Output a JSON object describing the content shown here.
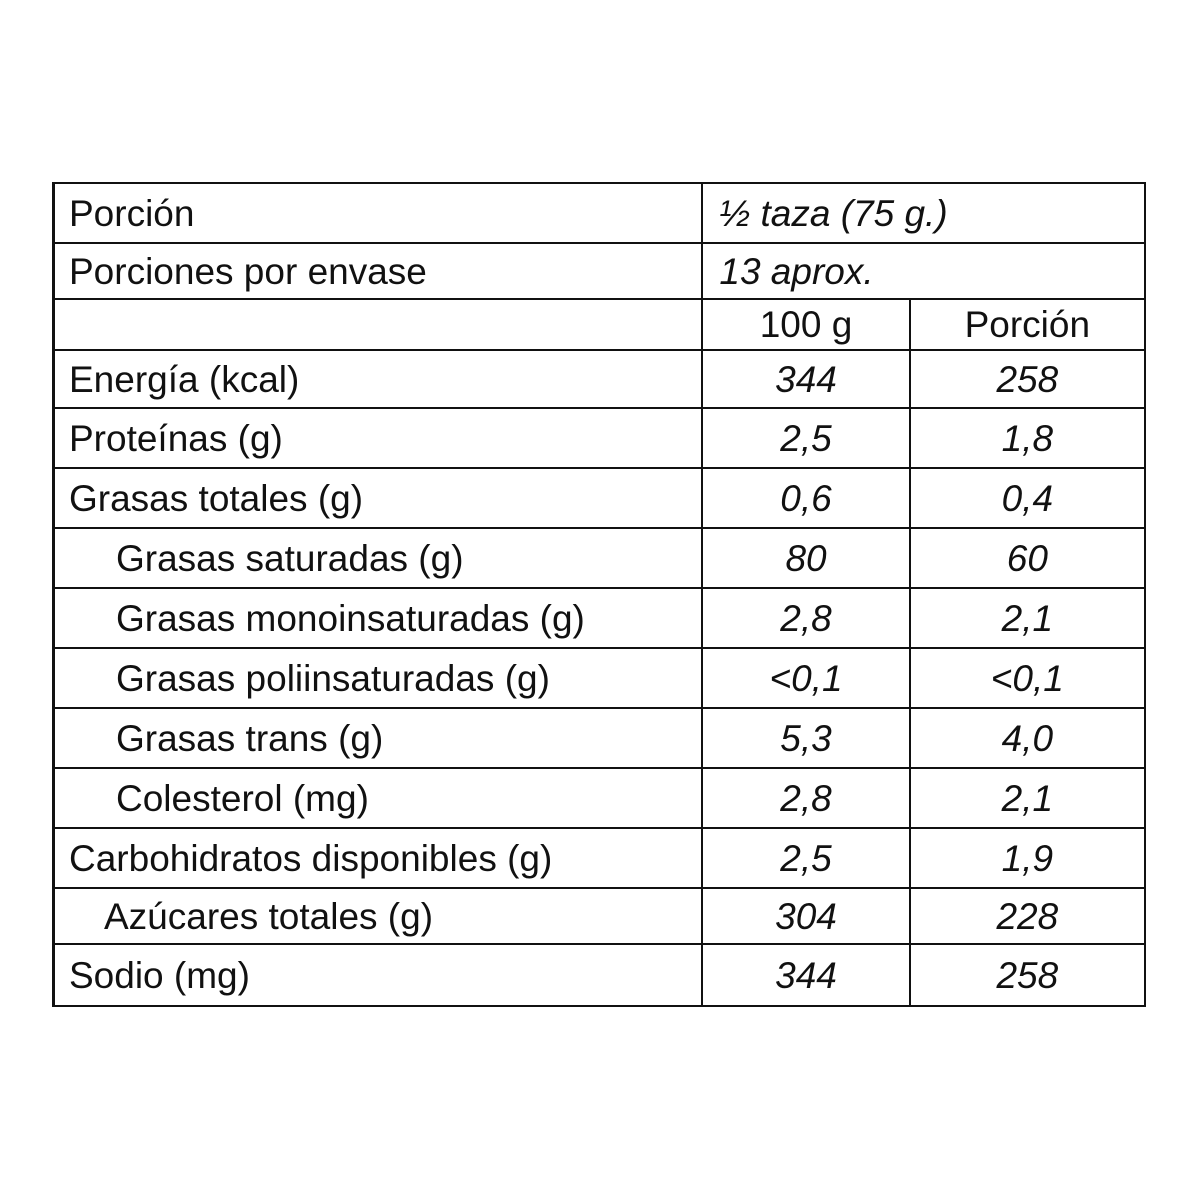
{
  "label": {
    "portion_label": "Porción",
    "portion_value": "½ taza (75 g.)",
    "servings_label": "Porciones por envase",
    "servings_value": "13 aprox.",
    "column_headers": [
      "100 g",
      "Porción"
    ],
    "rows": [
      {
        "name": "Energía (kcal)",
        "per_100g": "344",
        "per_portion": "258",
        "indent": 0
      },
      {
        "name": "Proteínas (g)",
        "per_100g": "2,5",
        "per_portion": "1,8",
        "indent": 0
      },
      {
        "name": "Grasas totales (g)",
        "per_100g": "0,6",
        "per_portion": "0,4",
        "indent": 0
      },
      {
        "name": "Grasas saturadas (g)",
        "per_100g": "80",
        "per_portion": "60",
        "indent": 1
      },
      {
        "name": "Grasas monoinsaturadas (g)",
        "per_100g": "2,8",
        "per_portion": "2,1",
        "indent": 1
      },
      {
        "name": "Grasas poliinsaturadas (g)",
        "per_100g": "<0,1",
        "per_portion": "<0,1",
        "indent": 1
      },
      {
        "name": "Grasas trans (g)",
        "per_100g": "5,3",
        "per_portion": "4,0",
        "indent": 1
      },
      {
        "name": "Colesterol (mg)",
        "per_100g": "2,8",
        "per_portion": "2,1",
        "indent": 1
      },
      {
        "name": "Carbohidratos disponibles (g)",
        "per_100g": "2,5",
        "per_portion": "1,9",
        "indent": 0
      },
      {
        "name": "Azúcares totales (g)",
        "per_100g": "304",
        "per_portion": "228",
        "indent": 1
      },
      {
        "name": "Sodio (mg)",
        "per_100g": "344",
        "per_portion": "258",
        "indent": 0
      }
    ]
  }
}
